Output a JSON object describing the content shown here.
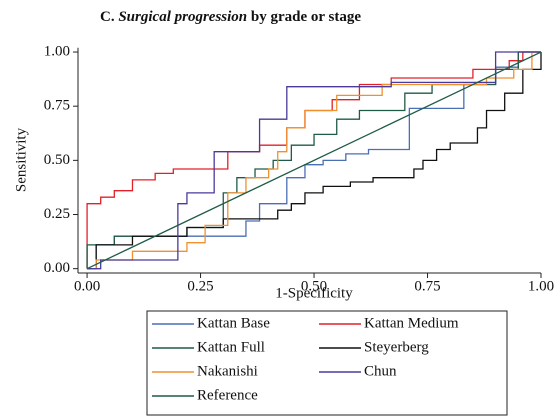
{
  "chart_data": {
    "type": "line",
    "title_parts": [
      "C.",
      "Surgical progression",
      "by grade or stage"
    ],
    "x_label": "1-Specificity",
    "y_label": "Sensitivity",
    "xlim": [
      -0.02,
      1.0
    ],
    "ylim": [
      -0.02,
      1.02
    ],
    "xticks": [
      {
        "value": 0,
        "label": "0.00"
      },
      {
        "value": 0.25,
        "label": "0.25"
      },
      {
        "value": 0.5,
        "label": "0.50"
      },
      {
        "value": 0.75,
        "label": "0.75"
      },
      {
        "value": 1,
        "label": "1.00"
      }
    ],
    "yticks": [
      {
        "value": 0,
        "label": "0.00"
      },
      {
        "value": 0.25,
        "label": "0.25"
      },
      {
        "value": 0.5,
        "label": "0.50"
      },
      {
        "value": 0.75,
        "label": "0.75"
      },
      {
        "value": 1,
        "label": "1.00"
      }
    ],
    "grid": false,
    "series": [
      {
        "name": "Kattan Base",
        "color": "#4a6fb5",
        "x": [
          0,
          0.02,
          0.02,
          0.06,
          0.06,
          0.35,
          0.35,
          0.38,
          0.38,
          0.44,
          0.44,
          0.48,
          0.48,
          0.52,
          0.52,
          0.57,
          0.57,
          0.62,
          0.62,
          0.71,
          0.71,
          0.83,
          0.83,
          0.9,
          0.9,
          0.95,
          0.95,
          1.0
        ],
        "values": [
          0,
          0,
          0.11,
          0.11,
          0.15,
          0.15,
          0.22,
          0.22,
          0.3,
          0.3,
          0.42,
          0.42,
          0.48,
          0.48,
          0.5,
          0.5,
          0.53,
          0.53,
          0.55,
          0.55,
          0.74,
          0.74,
          0.85,
          0.85,
          0.93,
          0.93,
          1.0,
          1.0
        ]
      },
      {
        "name": "Kattan Medium",
        "color": "#e3202a",
        "x": [
          0,
          0,
          0.03,
          0.03,
          0.06,
          0.06,
          0.1,
          0.1,
          0.15,
          0.15,
          0.19,
          0.19,
          0.31,
          0.31,
          0.38,
          0.38,
          0.44,
          0.44,
          0.48,
          0.48,
          0.54,
          0.54,
          0.6,
          0.6,
          0.67,
          0.67,
          0.85,
          0.85,
          0.93,
          0.93,
          0.96,
          0.96,
          1.0
        ],
        "values": [
          0,
          0.3,
          0.3,
          0.33,
          0.33,
          0.36,
          0.36,
          0.41,
          0.41,
          0.44,
          0.44,
          0.46,
          0.46,
          0.54,
          0.54,
          0.57,
          0.57,
          0.65,
          0.65,
          0.73,
          0.73,
          0.78,
          0.78,
          0.85,
          0.85,
          0.88,
          0.88,
          0.92,
          0.92,
          0.96,
          0.96,
          1.0,
          1.0
        ]
      },
      {
        "name": "Kattan Full",
        "color": "#1f5c46",
        "x": [
          0,
          0,
          0.06,
          0.06,
          0.22,
          0.22,
          0.3,
          0.3,
          0.33,
          0.33,
          0.37,
          0.37,
          0.41,
          0.41,
          0.45,
          0.45,
          0.5,
          0.5,
          0.55,
          0.55,
          0.6,
          0.6,
          0.7,
          0.7,
          0.76,
          0.76,
          0.9,
          0.9,
          0.95,
          0.95,
          1.0
        ],
        "values": [
          0,
          0.11,
          0.11,
          0.15,
          0.15,
          0.19,
          0.19,
          0.35,
          0.35,
          0.42,
          0.42,
          0.46,
          0.46,
          0.5,
          0.5,
          0.57,
          0.57,
          0.62,
          0.62,
          0.69,
          0.69,
          0.73,
          0.73,
          0.81,
          0.81,
          0.85,
          0.85,
          0.92,
          0.92,
          1.0,
          1.0
        ]
      },
      {
        "name": "Steyerberg",
        "color": "#111111",
        "x": [
          0,
          0.02,
          0.02,
          0.1,
          0.1,
          0.22,
          0.22,
          0.3,
          0.3,
          0.42,
          0.42,
          0.45,
          0.45,
          0.48,
          0.48,
          0.52,
          0.52,
          0.58,
          0.58,
          0.63,
          0.63,
          0.72,
          0.72,
          0.74,
          0.74,
          0.77,
          0.77,
          0.8,
          0.8,
          0.86,
          0.86,
          0.88,
          0.88,
          0.92,
          0.92,
          0.96,
          0.96,
          1.0,
          1.0
        ],
        "values": [
          0,
          0,
          0.11,
          0.11,
          0.15,
          0.15,
          0.19,
          0.19,
          0.23,
          0.23,
          0.27,
          0.27,
          0.3,
          0.3,
          0.35,
          0.35,
          0.38,
          0.38,
          0.4,
          0.4,
          0.42,
          0.42,
          0.46,
          0.46,
          0.5,
          0.5,
          0.55,
          0.55,
          0.58,
          0.58,
          0.65,
          0.65,
          0.73,
          0.73,
          0.81,
          0.81,
          0.92,
          0.92,
          1.0
        ]
      },
      {
        "name": "Nakanishi",
        "color": "#f0912e",
        "x": [
          0,
          0.02,
          0.02,
          0.1,
          0.1,
          0.22,
          0.22,
          0.26,
          0.26,
          0.31,
          0.31,
          0.35,
          0.35,
          0.4,
          0.4,
          0.42,
          0.42,
          0.44,
          0.44,
          0.48,
          0.48,
          0.55,
          0.55,
          0.65,
          0.65,
          0.88,
          0.88,
          0.94,
          0.94,
          0.98,
          0.98,
          1.0
        ],
        "values": [
          0,
          0,
          0.04,
          0.04,
          0.08,
          0.08,
          0.12,
          0.12,
          0.2,
          0.2,
          0.35,
          0.35,
          0.42,
          0.42,
          0.46,
          0.46,
          0.54,
          0.54,
          0.65,
          0.65,
          0.73,
          0.73,
          0.8,
          0.8,
          0.85,
          0.85,
          0.88,
          0.88,
          0.92,
          0.92,
          1.0,
          1.0
        ]
      },
      {
        "name": "Chun",
        "color": "#4b3a9a",
        "x": [
          0,
          0.03,
          0.03,
          0.2,
          0.2,
          0.22,
          0.22,
          0.28,
          0.28,
          0.38,
          0.38,
          0.44,
          0.44,
          0.67,
          0.67,
          0.9,
          0.9,
          1.0
        ],
        "values": [
          0,
          0,
          0.04,
          0.04,
          0.3,
          0.3,
          0.35,
          0.35,
          0.54,
          0.54,
          0.69,
          0.69,
          0.84,
          0.84,
          0.86,
          0.86,
          1.0,
          1.0
        ]
      },
      {
        "name": "Reference",
        "color": "#1f5c46",
        "x": [
          0,
          1
        ],
        "values": [
          0,
          1
        ]
      }
    ]
  }
}
